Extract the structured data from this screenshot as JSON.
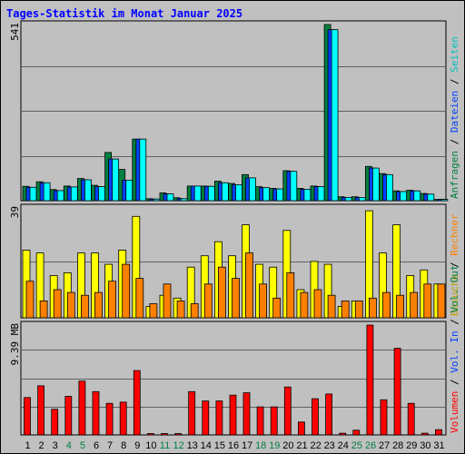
{
  "title": "Tages-Statistik im Monat Januar 2025",
  "chart_data": [
    {
      "type": "bar",
      "panel": "requests",
      "ymax_label": "541",
      "ylim": [
        0,
        541
      ],
      "categories": [
        "1",
        "2",
        "3",
        "4",
        "5",
        "6",
        "7",
        "8",
        "9",
        "10",
        "11",
        "12",
        "13",
        "14",
        "15",
        "16",
        "17",
        "18",
        "19",
        "20",
        "21",
        "22",
        "23",
        "24",
        "25",
        "26",
        "27",
        "28",
        "29",
        "30",
        "31"
      ],
      "weekend_days": [
        "4",
        "5",
        "11",
        "12",
        "18",
        "19",
        "25",
        "26"
      ],
      "series": [
        {
          "name": "Anfragen",
          "color": "#008040",
          "values": [
            44,
            58,
            34,
            45,
            68,
            47,
            148,
            96,
            189,
            6,
            24,
            9,
            45,
            45,
            60,
            53,
            80,
            43,
            38,
            92,
            38,
            45,
            541,
            12,
            12,
            105,
            83,
            30,
            32,
            22,
            4
          ]
        },
        {
          "name": "Dateien",
          "color": "#0040ff",
          "values": [
            41,
            55,
            31,
            42,
            64,
            43,
            128,
            63,
            189,
            5,
            21,
            6,
            45,
            44,
            55,
            49,
            70,
            40,
            36,
            90,
            35,
            43,
            525,
            10,
            10,
            100,
            80,
            28,
            30,
            20,
            4
          ]
        },
        {
          "name": "Seiten",
          "color": "#00ffff",
          "values": [
            41,
            55,
            31,
            42,
            64,
            43,
            128,
            63,
            189,
            5,
            21,
            6,
            45,
            44,
            55,
            49,
            70,
            40,
            36,
            90,
            35,
            43,
            525,
            10,
            10,
            100,
            80,
            28,
            30,
            20,
            4
          ]
        }
      ],
      "right_labels": [
        "Anfragen",
        "Dateien",
        "Seiten"
      ]
    },
    {
      "type": "bar",
      "panel": "visits",
      "ymax_label": "39",
      "ylim": [
        0,
        39
      ],
      "categories": [
        "1",
        "2",
        "3",
        "4",
        "5",
        "6",
        "7",
        "8",
        "9",
        "10",
        "11",
        "12",
        "13",
        "14",
        "15",
        "16",
        "17",
        "18",
        "19",
        "20",
        "21",
        "22",
        "23",
        "24",
        "25",
        "26",
        "27",
        "28",
        "29",
        "30",
        "31"
      ],
      "series": [
        {
          "name": "Besuche",
          "color": "#ffff00",
          "values": [
            24,
            23,
            15,
            16,
            23,
            23,
            19,
            24,
            36,
            4,
            8,
            7,
            18,
            22,
            27,
            22,
            33,
            19,
            18,
            31,
            10,
            20,
            19,
            4,
            6,
            38,
            23,
            33,
            15,
            17,
            12
          ]
        },
        {
          "name": "Rechner",
          "color": "#ff8000",
          "values": [
            13,
            6,
            10,
            9,
            8,
            9,
            13,
            19,
            14,
            5,
            12,
            6,
            5,
            12,
            18,
            14,
            23,
            12,
            7,
            16,
            9,
            10,
            8,
            6,
            6,
            7,
            9,
            8,
            9,
            12,
            12
          ]
        }
      ],
      "right_labels": [
        "Besuche",
        "Rechner"
      ]
    },
    {
      "type": "bar",
      "panel": "volume",
      "ymax_label": "9.39 MB",
      "ylim": [
        0,
        9.39
      ],
      "unit": "MB",
      "categories": [
        "1",
        "2",
        "3",
        "4",
        "5",
        "6",
        "7",
        "8",
        "9",
        "10",
        "11",
        "12",
        "13",
        "14",
        "15",
        "16",
        "17",
        "18",
        "19",
        "20",
        "21",
        "22",
        "23",
        "24",
        "25",
        "26",
        "27",
        "28",
        "29",
        "30",
        "31"
      ],
      "series": [
        {
          "name": "Volumen",
          "color": "#ff0000",
          "values": [
            3.2,
            4.2,
            2.2,
            3.3,
            4.6,
            3.7,
            2.7,
            2.8,
            5.5,
            0.12,
            0.12,
            0.12,
            3.7,
            2.9,
            2.9,
            3.4,
            3.6,
            2.4,
            2.4,
            4.1,
            1.1,
            3.1,
            3.5,
            0.15,
            0.4,
            9.39,
            3.0,
            7.4,
            2.7,
            0.15,
            0.45
          ]
        }
      ],
      "right_labels": [
        "Volumen",
        "Vol. In",
        "Vol. Out"
      ],
      "right_label_colors": [
        "#ff0000",
        "#0040ff",
        "#008040"
      ]
    }
  ]
}
